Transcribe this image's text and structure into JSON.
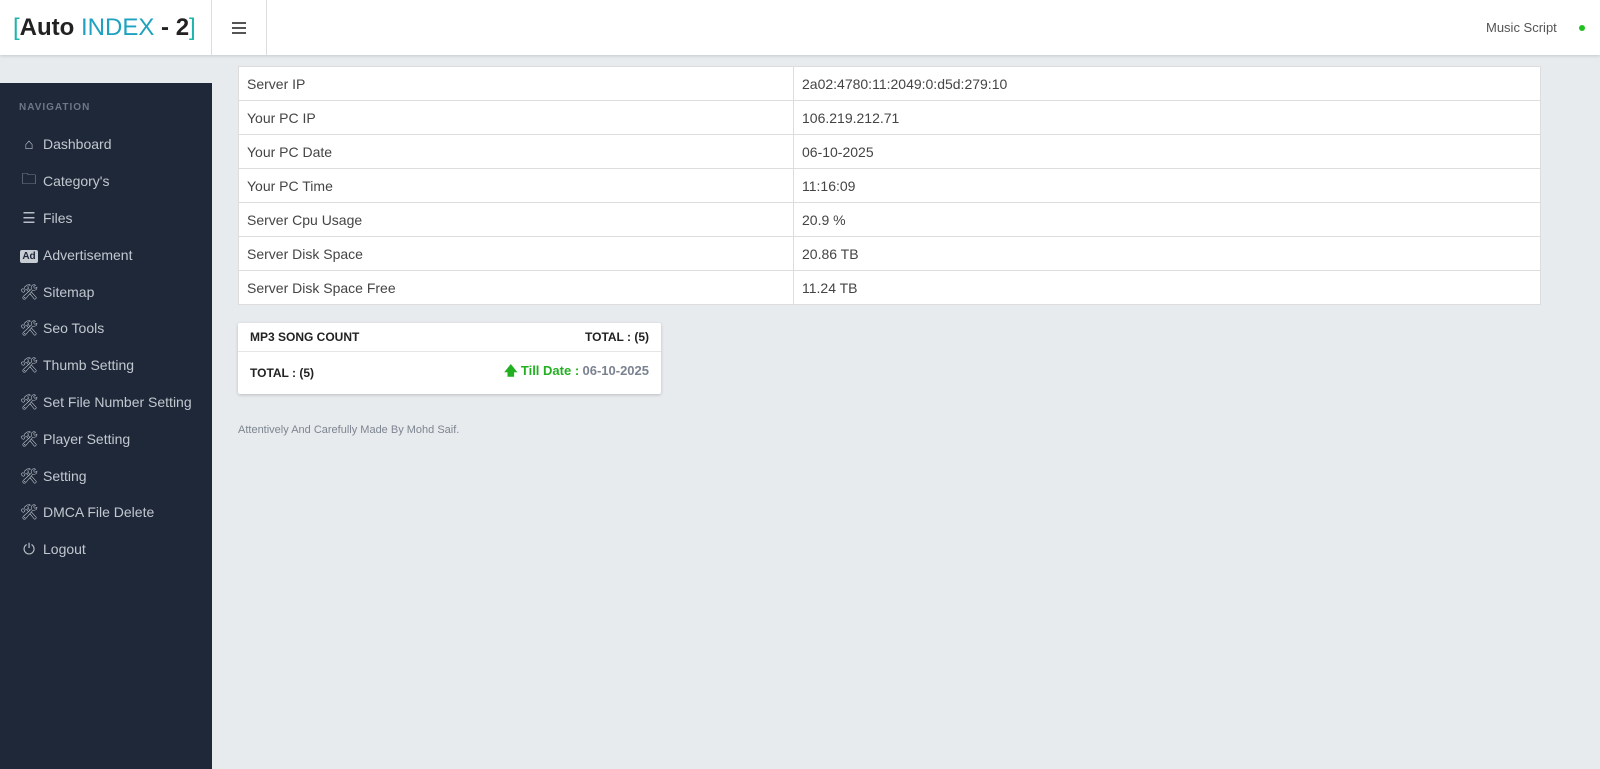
{
  "header": {
    "logo_bracket_open": "[",
    "logo_auto": "Auto",
    "logo_index": "INDEX",
    "logo_suffix": "- 2",
    "logo_bracket_close": "]",
    "user_label": "Music Script",
    "status_color": "#22c022"
  },
  "sidebar": {
    "heading": "NAVIGATION",
    "items": [
      {
        "label": "Dashboard",
        "icon": "home-icon"
      },
      {
        "label": "Category's",
        "icon": "folder-icon"
      },
      {
        "label": "Files",
        "icon": "list-icon"
      },
      {
        "label": "Advertisement",
        "icon": "ad-icon",
        "icon_text": "Ad"
      },
      {
        "label": "Sitemap",
        "icon": "tools-icon"
      },
      {
        "label": "Seo Tools",
        "icon": "tools-icon"
      },
      {
        "label": "Thumb Setting",
        "icon": "tools-icon"
      },
      {
        "label": "Set File Number Setting",
        "icon": "tools-icon"
      },
      {
        "label": "Player Setting",
        "icon": "tools-icon"
      },
      {
        "label": "Setting",
        "icon": "tools-icon"
      },
      {
        "label": "DMCA File Delete",
        "icon": "tools-icon"
      },
      {
        "label": "Logout",
        "icon": "power-icon"
      }
    ]
  },
  "info": [
    {
      "label": "Server IP",
      "value": "2a02:4780:11:2049:0:d5d:279:10"
    },
    {
      "label": "Your PC IP",
      "value": "106.219.212.71"
    },
    {
      "label": "Your PC Date",
      "value": "06-10-2025"
    },
    {
      "label": "Your PC Time",
      "value": "11:16:09"
    },
    {
      "label": "Server Cpu Usage",
      "value": "20.9 %"
    },
    {
      "label": "Server Disk Space",
      "value": "20.86 TB"
    },
    {
      "label": "Server Disk Space Free",
      "value": "11.24 TB"
    }
  ],
  "card": {
    "title": "MP3 SONG COUNT",
    "total_header": "TOTAL : (5)",
    "total": "TOTAL : (5)",
    "till_label": "Till Date :",
    "till_date": "06-10-2025"
  },
  "footer": "Attentively And Carefully Made By Mohd Saif."
}
